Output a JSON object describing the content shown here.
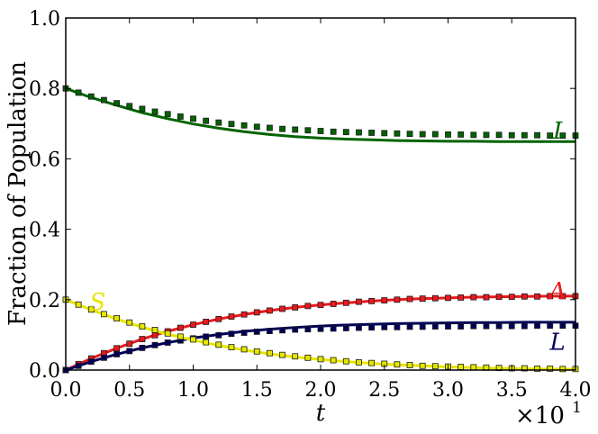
{
  "chart_data": {
    "type": "line",
    "xlabel": "t",
    "ylabel": "Fraction of Population",
    "x_multiplier": {
      "base": "×10",
      "exponent": "1"
    },
    "xlim": [
      0,
      40
    ],
    "ylim": [
      0,
      1.0
    ],
    "xticks": [
      0,
      5,
      10,
      15,
      20,
      25,
      30,
      35,
      40
    ],
    "xtick_labels": [
      "0.0",
      "0.5",
      "1.0",
      "1.5",
      "2.0",
      "2.5",
      "3.0",
      "3.5",
      "4.0"
    ],
    "yticks": [
      0,
      0.2,
      0.4,
      0.6,
      0.8,
      1.0
    ],
    "ytick_labels": [
      "0.0",
      "0.2",
      "0.4",
      "0.6",
      "0.8",
      "1.0"
    ],
    "grid": false,
    "legend": "none",
    "marker_x": [
      0,
      1,
      2,
      3,
      4,
      5,
      6,
      7,
      8,
      9,
      10,
      11,
      12,
      13,
      14,
      15,
      16,
      17,
      18,
      19,
      20,
      21,
      22,
      23,
      24,
      25,
      26,
      27,
      28,
      29,
      30,
      31,
      32,
      33,
      34,
      35,
      36,
      37,
      38,
      39,
      40
    ],
    "series": [
      {
        "name": "I",
        "color": "#006400",
        "marker_fill": "#006400",
        "line_x": [
          0,
          2,
          4,
          6,
          8,
          10,
          12,
          14,
          16,
          18,
          20,
          22,
          24,
          26,
          28,
          30,
          32,
          34,
          36,
          38,
          40
        ],
        "line_y": [
          0.8,
          0.774,
          0.752,
          0.731,
          0.714,
          0.699,
          0.687,
          0.677,
          0.669,
          0.663,
          0.659,
          0.656,
          0.654,
          0.652,
          0.651,
          0.65,
          0.65,
          0.649,
          0.649,
          0.649,
          0.649
        ],
        "marker_y": [
          0.8,
          0.788,
          0.777,
          0.767,
          0.758,
          0.75,
          0.742,
          0.734,
          0.727,
          0.72,
          0.714,
          0.708,
          0.703,
          0.699,
          0.695,
          0.691,
          0.688,
          0.685,
          0.683,
          0.681,
          0.679,
          0.677,
          0.676,
          0.675,
          0.674,
          0.673,
          0.672,
          0.671,
          0.67,
          0.67,
          0.669,
          0.669,
          0.668,
          0.668,
          0.668,
          0.667,
          0.667,
          0.667,
          0.666,
          0.666,
          0.666
        ]
      },
      {
        "name": "A",
        "color": "#e8191e",
        "marker_fill": "#e8191e",
        "line_x": [
          0,
          2,
          4,
          6,
          8,
          10,
          12,
          14,
          16,
          18,
          20,
          22,
          24,
          26,
          28,
          30,
          32,
          34,
          36,
          38,
          40
        ],
        "line_y": [
          0.0,
          0.033,
          0.062,
          0.088,
          0.11,
          0.129,
          0.145,
          0.158,
          0.169,
          0.178,
          0.185,
          0.191,
          0.196,
          0.2,
          0.203,
          0.205,
          0.207,
          0.208,
          0.209,
          0.21,
          0.21
        ],
        "marker_y": [
          0.0,
          0.017,
          0.033,
          0.048,
          0.062,
          0.075,
          0.088,
          0.099,
          0.11,
          0.12,
          0.129,
          0.137,
          0.145,
          0.152,
          0.158,
          0.164,
          0.169,
          0.174,
          0.178,
          0.182,
          0.185,
          0.188,
          0.191,
          0.194,
          0.196,
          0.198,
          0.2,
          0.202,
          0.203,
          0.204,
          0.205,
          0.206,
          0.207,
          0.207,
          0.208,
          0.208,
          0.209,
          0.209,
          0.21,
          0.21,
          0.21
        ]
      },
      {
        "name": "L",
        "color": "#00005a",
        "marker_fill": "#00005a",
        "line_x": [
          0,
          2,
          4,
          6,
          8,
          10,
          12,
          14,
          16,
          18,
          20,
          22,
          24,
          26,
          28,
          30,
          32,
          34,
          36,
          38,
          40
        ],
        "line_y": [
          0.0,
          0.024,
          0.045,
          0.063,
          0.078,
          0.091,
          0.101,
          0.11,
          0.116,
          0.121,
          0.125,
          0.128,
          0.13,
          0.132,
          0.133,
          0.134,
          0.135,
          0.135,
          0.136,
          0.136,
          0.136
        ],
        "marker_y": [
          0.0,
          0.012,
          0.024,
          0.035,
          0.045,
          0.054,
          0.063,
          0.071,
          0.078,
          0.084,
          0.09,
          0.095,
          0.099,
          0.103,
          0.106,
          0.109,
          0.111,
          0.113,
          0.115,
          0.116,
          0.117,
          0.118,
          0.119,
          0.12,
          0.121,
          0.122,
          0.122,
          0.123,
          0.123,
          0.124,
          0.124,
          0.124,
          0.125,
          0.125,
          0.125,
          0.125,
          0.125,
          0.126,
          0.126,
          0.126,
          0.126
        ]
      },
      {
        "name": "S",
        "color": "#e6e600",
        "marker_fill": "#e6e600",
        "line_x": [
          0,
          2,
          4,
          6,
          8,
          10,
          12,
          14,
          16,
          18,
          20,
          22,
          24,
          26,
          28,
          30,
          32,
          34,
          36,
          38,
          40
        ],
        "line_y": [
          0.2,
          0.171,
          0.145,
          0.122,
          0.102,
          0.085,
          0.07,
          0.057,
          0.046,
          0.037,
          0.03,
          0.024,
          0.019,
          0.015,
          0.012,
          0.009,
          0.007,
          0.005,
          0.004,
          0.003,
          0.002
        ],
        "marker_y": [
          0.2,
          0.186,
          0.172,
          0.159,
          0.147,
          0.135,
          0.124,
          0.114,
          0.104,
          0.095,
          0.087,
          0.079,
          0.072,
          0.065,
          0.059,
          0.053,
          0.048,
          0.043,
          0.039,
          0.035,
          0.031,
          0.028,
          0.025,
          0.022,
          0.02,
          0.018,
          0.016,
          0.014,
          0.012,
          0.011,
          0.01,
          0.009,
          0.008,
          0.007,
          0.006,
          0.005,
          0.005,
          0.004,
          0.004,
          0.003,
          0.003
        ]
      }
    ],
    "annotations": [
      {
        "text": "I",
        "series": "I",
        "x": 38.6,
        "y": 0.68
      },
      {
        "text": "A",
        "series": "A",
        "x": 38.6,
        "y": 0.225
      },
      {
        "text": "L",
        "series": "L",
        "x": 38.6,
        "y": 0.08
      },
      {
        "text": "S",
        "series": "S",
        "x": 2.5,
        "y": 0.195
      }
    ]
  }
}
